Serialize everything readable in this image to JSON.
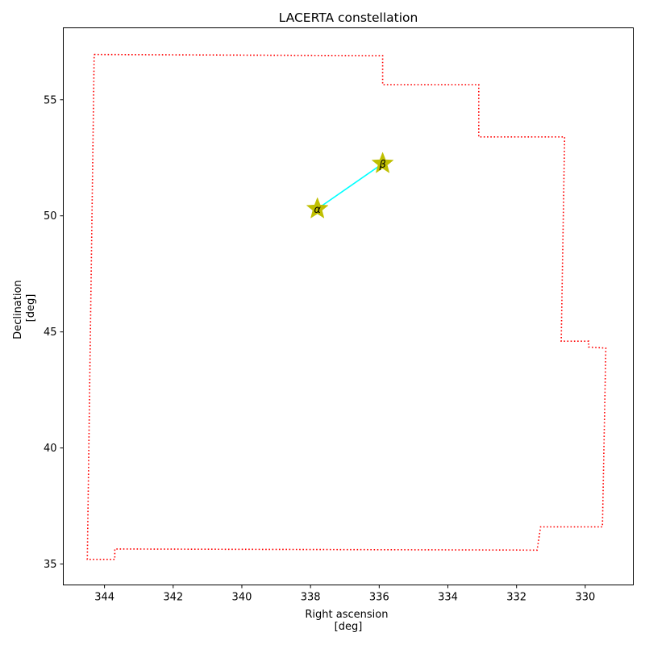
{
  "chart_data": {
    "type": "scatter",
    "title": "LACERTA constellation",
    "xlabel": [
      "Right ascension",
      "[deg]"
    ],
    "ylabel": [
      "Declination",
      "[deg]"
    ],
    "xlim": [
      345.2,
      328.6
    ],
    "ylim": [
      34.1,
      58.1
    ],
    "x_inverted": true,
    "xticks": [
      344,
      342,
      340,
      338,
      336,
      334,
      332,
      330
    ],
    "yticks": [
      35,
      40,
      45,
      50,
      55
    ],
    "grid": false,
    "boundary": {
      "color": "#ff0000",
      "style": "dotted",
      "points": [
        [
          344.3,
          56.95
        ],
        [
          335.9,
          56.9
        ],
        [
          335.9,
          55.65
        ],
        [
          333.1,
          55.65
        ],
        [
          333.1,
          53.4
        ],
        [
          330.6,
          53.4
        ],
        [
          330.7,
          44.6
        ],
        [
          329.9,
          44.6
        ],
        [
          329.9,
          44.35
        ],
        [
          329.4,
          44.3
        ],
        [
          329.5,
          36.6
        ],
        [
          331.3,
          36.6
        ],
        [
          331.4,
          35.6
        ],
        [
          343.7,
          35.65
        ],
        [
          343.7,
          35.2
        ],
        [
          344.5,
          35.2
        ],
        [
          344.3,
          56.95
        ]
      ]
    },
    "stars": [
      {
        "label": "α",
        "x": 337.8,
        "y": 50.3
      },
      {
        "label": "β",
        "x": 335.9,
        "y": 52.25
      }
    ],
    "star_color": "#bfbf00",
    "line_color": "#00ffff"
  }
}
